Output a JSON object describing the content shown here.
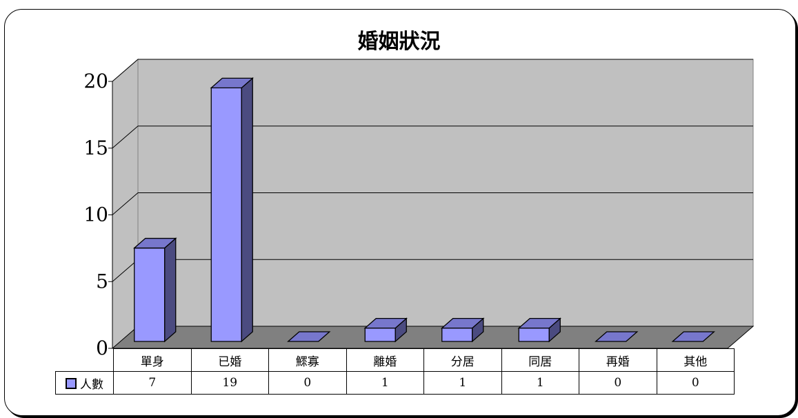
{
  "chart_data": {
    "type": "bar",
    "title": "婚姻狀況",
    "categories": [
      "單身",
      "已婚",
      "鰥寡",
      "離婚",
      "分居",
      "同居",
      "再婚",
      "其他"
    ],
    "series": [
      {
        "name": "人數",
        "values": [
          7,
          19,
          0,
          1,
          1,
          1,
          0,
          0
        ],
        "color": "#9999ff"
      }
    ],
    "ylim": [
      0,
      20
    ],
    "yticks": [
      0,
      5,
      10,
      15,
      20
    ],
    "grid": true,
    "legend": "data-table",
    "colors": {
      "bar_front": "#9999ff",
      "bar_side": "#4b4b80",
      "bar_top": "#7777cc",
      "wall": "#c0c0c0",
      "floor": "#808080"
    }
  }
}
